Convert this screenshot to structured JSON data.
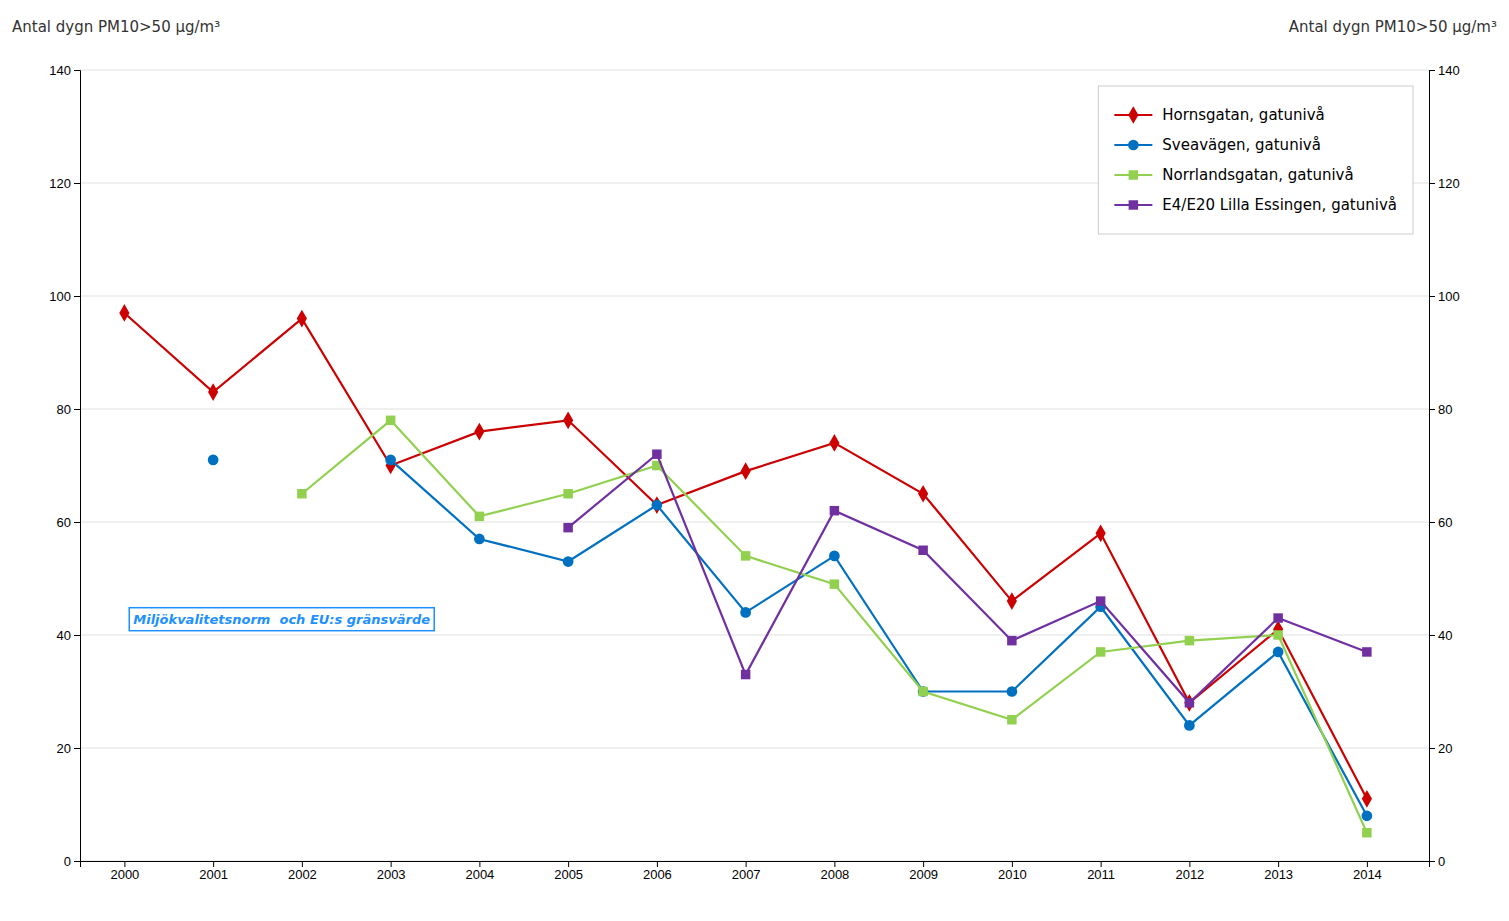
{
  "chart_data": {
    "type": "line",
    "x": [
      2000,
      2001,
      2002,
      2003,
      2004,
      2005,
      2006,
      2007,
      2008,
      2009,
      2010,
      2011,
      2012,
      2013,
      2014
    ],
    "xlim": [
      1999.5,
      2014.7
    ],
    "xticks": [
      2000,
      2001,
      2002,
      2003,
      2004,
      2005,
      2006,
      2007,
      2008,
      2009,
      2010,
      2011,
      2012,
      2013,
      2014
    ],
    "ylim": [
      0,
      140
    ],
    "yticks": [
      0,
      20,
      40,
      60,
      80,
      100,
      120,
      140
    ],
    "y2lim": [
      0,
      140
    ],
    "y2ticks": [
      0,
      20,
      40,
      60,
      80,
      100,
      120,
      140
    ],
    "y_label": "Antal dygn PM10>50 µg/m³",
    "y2_label": "Antal dygn PM10>50 µg/m³",
    "grid": true,
    "legend": "upper right",
    "annotations": [
      {
        "text": "Miljökvalitetsnorm  och EU:s gränsvärde",
        "x": 2000.1,
        "y": 42
      }
    ],
    "series": [
      {
        "name": "Hornsgatan, gatunivå",
        "color": "#cc0000",
        "marker": "diamond",
        "values": [
          97,
          83,
          96,
          70,
          76,
          78,
          63,
          69,
          74,
          65,
          46,
          58,
          28,
          41,
          11
        ]
      },
      {
        "name": "Sveavägen, gatunivå",
        "color": "#0070c0",
        "marker": "circle",
        "values": [
          null,
          71,
          null,
          71,
          57,
          53,
          63,
          44,
          54,
          30,
          30,
          45,
          24,
          37,
          8
        ]
      },
      {
        "name": "Norrlandsgatan, gatunivå",
        "color": "#92d050",
        "marker": "square",
        "values": [
          null,
          null,
          65,
          78,
          61,
          65,
          70,
          54,
          49,
          30,
          25,
          37,
          39,
          40,
          5
        ]
      },
      {
        "name": "E4/E20 Lilla Essingen, gatunivå",
        "color": "#7030a0",
        "marker": "square",
        "values": [
          null,
          null,
          null,
          null,
          null,
          59,
          72,
          33,
          62,
          55,
          39,
          46,
          28,
          43,
          37
        ]
      }
    ]
  }
}
